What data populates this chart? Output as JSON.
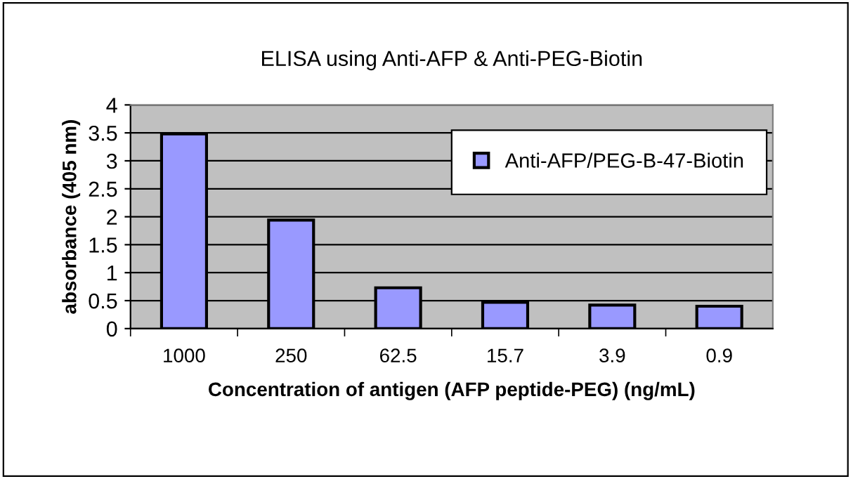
{
  "chart_data": {
    "type": "bar",
    "title": "ELISA using Anti-AFP & Anti-PEG-Biotin",
    "xlabel": "Concentration of antigen (AFP peptide-PEG) (ng/mL)",
    "ylabel": "absorbance (405 nm)",
    "categories": [
      "1000",
      "250",
      "62.5",
      "15.7",
      "3.9",
      "0.9"
    ],
    "series": [
      {
        "name": "Anti-AFP/PEG-B-47-Biotin",
        "color": "#9999ff",
        "values": [
          3.48,
          1.94,
          0.73,
          0.47,
          0.42,
          0.4
        ]
      }
    ],
    "ylim": [
      0,
      4
    ],
    "yticks": [
      0,
      0.5,
      1,
      1.5,
      2,
      2.5,
      3,
      3.5,
      4
    ],
    "grid": "y",
    "legend": "top right"
  }
}
